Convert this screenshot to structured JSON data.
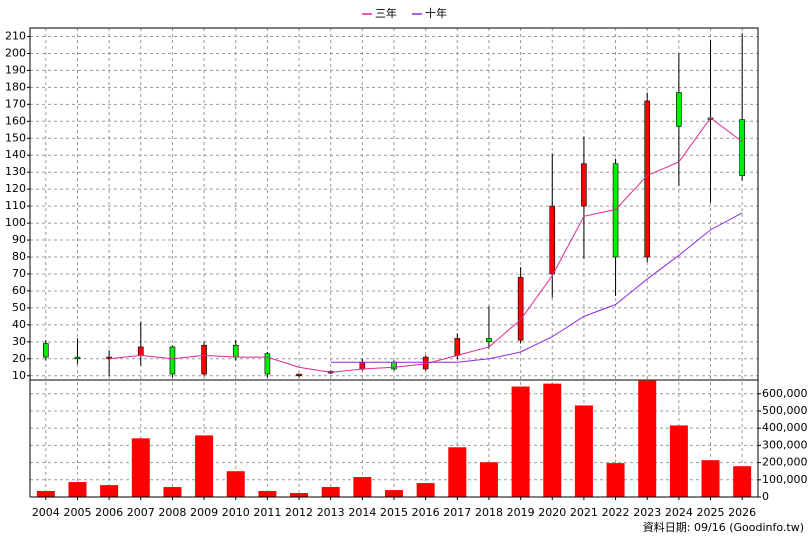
{
  "chart_data": [
    {
      "type": "candlestick",
      "categories": [
        "2004",
        "2005",
        "2006",
        "2007",
        "2008",
        "2009",
        "2010",
        "2011",
        "2012",
        "2013",
        "2014",
        "2015",
        "2016",
        "2017",
        "2018",
        "2019",
        "2020",
        "2021",
        "2022",
        "2023",
        "2024",
        "2025",
        "2026"
      ],
      "open": [
        29,
        21,
        20,
        22,
        27,
        11,
        28,
        23,
        10,
        12,
        14,
        18,
        14,
        22,
        32,
        31,
        70,
        110,
        135,
        80,
        177,
        162,
        161
      ],
      "high": [
        31,
        32,
        25,
        42,
        28,
        30,
        31,
        24,
        11,
        13,
        20,
        19,
        22,
        35,
        51,
        74,
        141,
        151,
        138,
        177,
        200,
        208,
        212
      ],
      "low": [
        19,
        17,
        10,
        16,
        9,
        10,
        19,
        9,
        9,
        11,
        13,
        13,
        13,
        20,
        26,
        29,
        56,
        79,
        57,
        77,
        122,
        112,
        125
      ],
      "close": [
        21,
        20,
        21,
        27,
        11,
        28,
        21,
        11,
        11,
        12.5,
        18,
        14,
        21,
        32,
        30,
        68,
        110,
        135,
        80,
        172,
        157,
        161,
        128
      ],
      "up_color": "#ff0000",
      "down_color": "#00ee00",
      "series": [
        {
          "name": "三年",
          "color": "#e0288c",
          "values": [
            null,
            null,
            20,
            22,
            20,
            22,
            21,
            21,
            15,
            12,
            14,
            15,
            17,
            22,
            27,
            43,
            69,
            104,
            108,
            128,
            136,
            162,
            148
          ]
        },
        {
          "name": "十年",
          "color": "#8a2be2",
          "values": [
            null,
            null,
            null,
            null,
            null,
            null,
            null,
            null,
            null,
            18,
            18,
            18,
            18,
            18,
            20,
            24,
            33,
            45,
            52,
            67,
            81,
            96,
            106
          ]
        }
      ],
      "ylim": [
        7.5,
        215
      ],
      "yticks": [
        10,
        20,
        30,
        40,
        50,
        60,
        70,
        80,
        90,
        100,
        110,
        120,
        130,
        140,
        150,
        160,
        170,
        180,
        190,
        200,
        210
      ],
      "grid": true
    },
    {
      "type": "bar",
      "values": [
        35000,
        87000,
        69000,
        341000,
        58000,
        358000,
        150000,
        35000,
        23000,
        58000,
        116000,
        40000,
        81000,
        289000,
        202000,
        642000,
        659000,
        532000,
        197000,
        676000,
        416000,
        214000,
        179000
      ],
      "color": "#ff0000",
      "ylim": [
        0,
        680000
      ],
      "yticks": [
        0,
        {
          "value": 100000,
          "label": "100,000"
        },
        {
          "value": 200000,
          "label": "200,000"
        },
        {
          "value": 300000,
          "label": "300,000"
        },
        {
          "value": 400000,
          "label": "400,000"
        },
        {
          "value": 500000,
          "label": "500,000"
        },
        {
          "value": 600000,
          "label": "600,000"
        }
      ],
      "grid": true
    }
  ],
  "source": "資料日期: 09/16 (Goodinfo.tw)"
}
